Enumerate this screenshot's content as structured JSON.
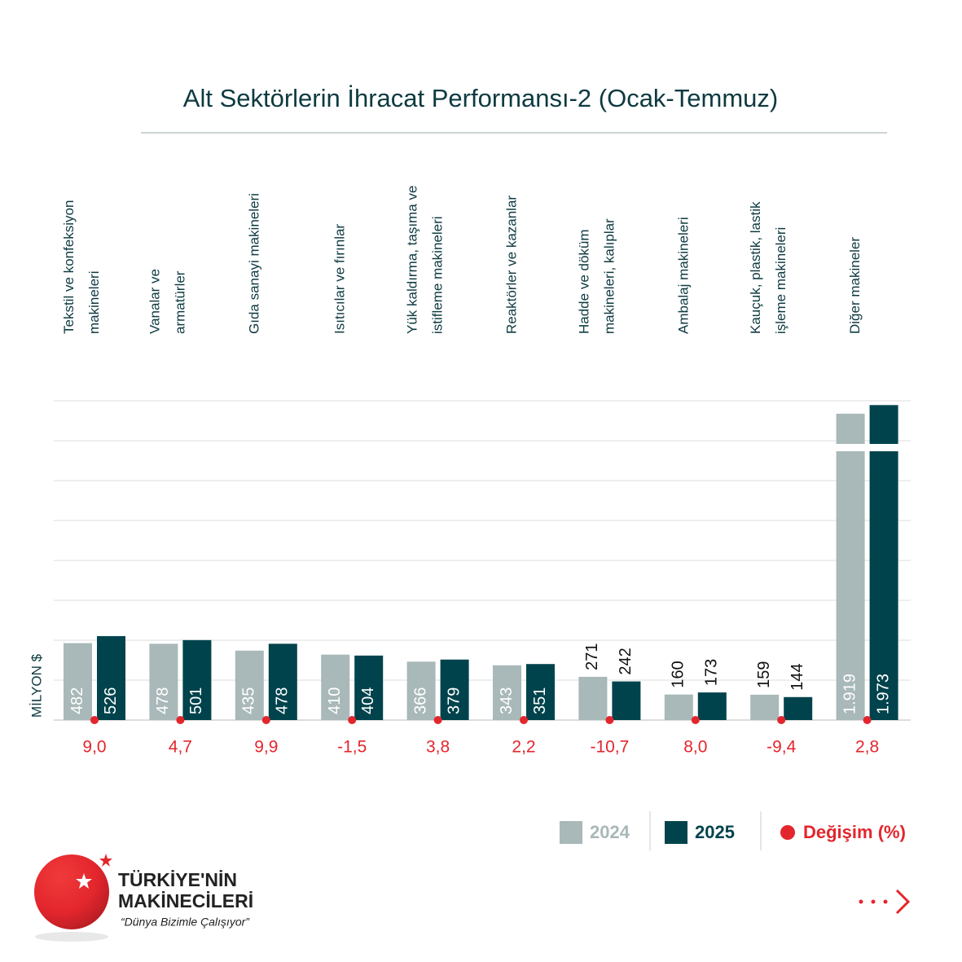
{
  "chart_data": {
    "type": "bar",
    "title": "Alt Sektörlerin İhracat Performansı-2 (Ocak-Temmuz)",
    "y_label": "MİLYON $",
    "categories": [
      "Tekstil ve konfeksiyon\nmakineleri",
      "Vanalar ve\narmatürler",
      "Gıda sanayi makineleri",
      "Isıtıcılar ve fırınlar",
      "Yük kaldırma, taşıma ve\nistifleme makineleri",
      "Reaktörler ve kazanlar",
      "Hadde ve döküm\nmakineleri, kalıplar",
      "Ambalaj makineleri",
      "Kauçuk, plastik, lastik\nişleme makineleri",
      "Diğer makineler"
    ],
    "series": [
      {
        "name": "2024",
        "color": "#a9b8b8",
        "values": [
          482,
          478,
          435,
          410,
          366,
          343,
          271,
          160,
          159,
          1919
        ],
        "value_labels": [
          "482",
          "478",
          "435",
          "410",
          "366",
          "343",
          "271",
          "160",
          "159",
          "1.919"
        ]
      },
      {
        "name": "2025",
        "color": "#00434c",
        "values": [
          526,
          501,
          478,
          404,
          379,
          351,
          242,
          173,
          144,
          1973
        ],
        "value_labels": [
          "526",
          "501",
          "478",
          "404",
          "379",
          "351",
          "242",
          "173",
          "144",
          "1.973"
        ]
      }
    ],
    "change": {
      "name": "Değişim (%)",
      "color": "#e3262d",
      "values": [
        9.0,
        4.7,
        9.9,
        -1.5,
        3.8,
        2.2,
        -10.7,
        8.0,
        -9.4,
        2.8
      ],
      "value_labels": [
        "9,0",
        "4,7",
        "9,9",
        "-1,5",
        "3,8",
        "2,2",
        "-10,7",
        "8,0",
        "-9,4",
        "2,8"
      ]
    },
    "ylim": [
      0,
      2000
    ],
    "yticks": [
      0,
      250,
      500,
      750,
      1000,
      1250,
      1500,
      1750,
      2000
    ],
    "grid": true
  },
  "logo": {
    "line1": "TÜRKİYE'NİN",
    "line2": "MAKİNECİLERİ",
    "tagline": "“Dünya Bizimle Çalışıyor”"
  }
}
